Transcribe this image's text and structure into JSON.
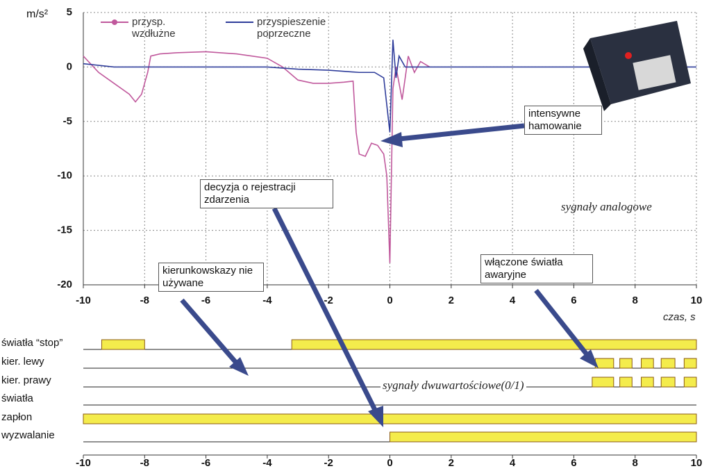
{
  "chart_data": [
    {
      "type": "line",
      "y_label": "m/s²",
      "x_label": "czas, s",
      "xlim": [
        -10,
        10
      ],
      "xticks": [
        -10,
        -8,
        -6,
        -4,
        -2,
        0,
        2,
        4,
        6,
        8,
        10
      ],
      "ylim": [
        -20,
        5
      ],
      "yticks": [
        -20,
        -15,
        -10,
        -5,
        0,
        5
      ],
      "grid": true,
      "series": [
        {
          "name": "przysp. wzdłużne",
          "color": "#c0589c",
          "x": [
            -10,
            -9.5,
            -9,
            -8.5,
            -8.3,
            -8.1,
            -7.9,
            -7.8,
            -7.5,
            -7,
            -6,
            -5.5,
            -5,
            -4,
            -3.5,
            -3,
            -2.5,
            -2,
            -1.5,
            -1.2,
            -1.1,
            -1,
            -0.8,
            -0.6,
            -0.4,
            -0.2,
            -0.1,
            0,
            0.05,
            0.1,
            0.2,
            0.4,
            0.6,
            0.8,
            1,
            1.3
          ],
          "values": [
            1,
            -0.5,
            -1.5,
            -2.5,
            -3.2,
            -2.5,
            -0.5,
            1,
            1.2,
            1.3,
            1.4,
            1.3,
            1.2,
            0.8,
            0,
            -1.2,
            -1.5,
            -1.5,
            -1.4,
            -1.3,
            -6,
            -8,
            -8.2,
            -7,
            -7.2,
            -8,
            -10,
            -18,
            -10,
            -2,
            0,
            -3,
            1,
            -0.5,
            0.5,
            0
          ]
        },
        {
          "name": "przyspieszenie poprzeczne",
          "color": "#2e3c9a",
          "x": [
            -10,
            -9,
            -5,
            -4,
            -3,
            -2,
            -1,
            -0.5,
            -0.2,
            0,
            0.1,
            0.2,
            0.3,
            0.5,
            1,
            6,
            10
          ],
          "values": [
            0.3,
            0,
            0,
            0,
            -0.2,
            -0.3,
            -0.5,
            -0.5,
            -1,
            -6,
            2.5,
            -1,
            1,
            0,
            0,
            0,
            0
          ]
        }
      ],
      "annotations": [
        "intensywne hamowanie",
        "decyzja o rejestracji zdarzenia",
        "sygnały analogowe",
        "kierunkowskazy nie używane",
        "włączone światła awaryjne"
      ]
    },
    {
      "type": "timing",
      "xlim": [
        -10,
        10
      ],
      "xticks": [
        -10,
        -8,
        -6,
        -4,
        -2,
        0,
        2,
        4,
        6,
        8,
        10
      ],
      "color": "#f4ec4c",
      "annotation": "sygnały dwuwartościowe(0/1)",
      "series": [
        {
          "name": "światła “stop”",
          "intervals": [
            [
              -9.4,
              -8
            ],
            [
              -3.2,
              10
            ]
          ]
        },
        {
          "name": "kier. lewy",
          "intervals": [
            [
              6.7,
              7.3
            ],
            [
              7.5,
              7.9
            ],
            [
              8.2,
              8.6
            ],
            [
              8.85,
              9.3
            ],
            [
              9.6,
              10
            ]
          ]
        },
        {
          "name": "kier. prawy",
          "intervals": [
            [
              6.6,
              7.3
            ],
            [
              7.5,
              7.9
            ],
            [
              8.2,
              8.6
            ],
            [
              8.85,
              9.3
            ],
            [
              9.6,
              10
            ]
          ]
        },
        {
          "name": "światła",
          "intervals": []
        },
        {
          "name": "zapłon",
          "intervals": [
            [
              -10,
              10
            ]
          ]
        },
        {
          "name": "wyzwalanie",
          "intervals": [
            [
              0,
              10
            ]
          ]
        }
      ]
    }
  ]
}
